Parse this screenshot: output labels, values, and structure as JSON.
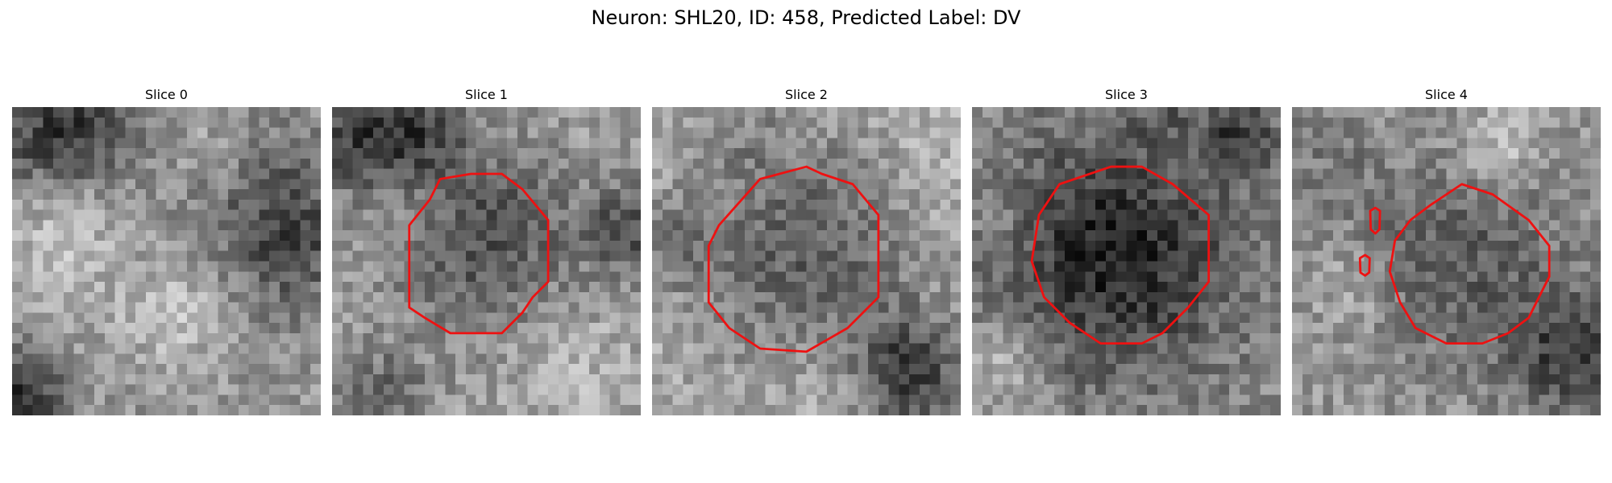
{
  "figure": {
    "title": "Neuron: SHL20, ID: 458, Predicted Label: DV"
  },
  "contour_color": "#ee1111",
  "panels": [
    {
      "title": "Slice 0"
    },
    {
      "title": "Slice 1"
    },
    {
      "title": "Slice 2"
    },
    {
      "title": "Slice 3"
    },
    {
      "title": "Slice 4"
    }
  ]
}
